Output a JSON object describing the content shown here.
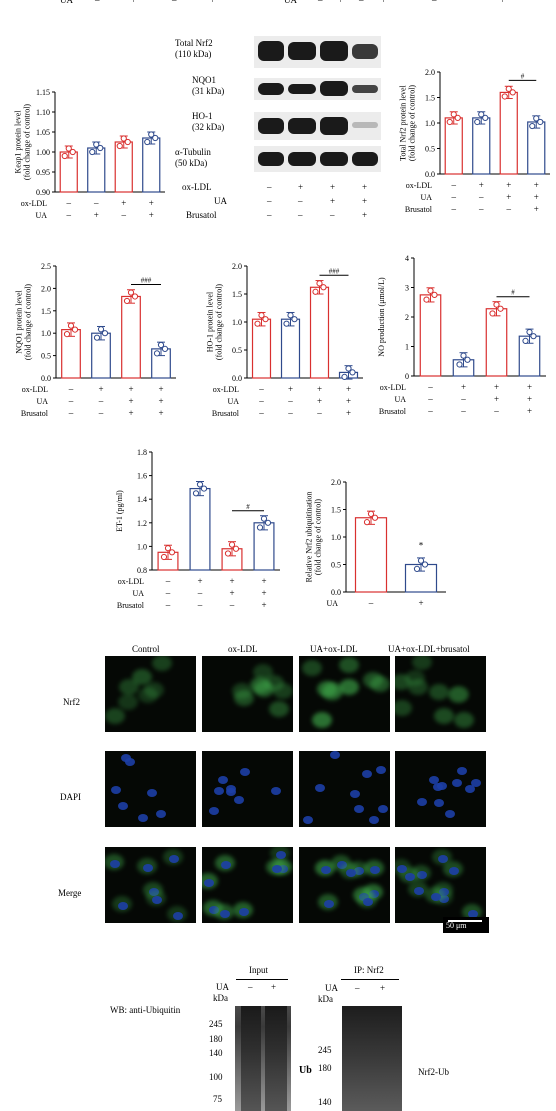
{
  "top_strip": {
    "ua_left": "UA",
    "ua_mid": "UA",
    "vals_left": [
      "–",
      "+",
      "–",
      "+"
    ],
    "vals_mid": [
      "–",
      "+",
      "–",
      "+"
    ],
    "vals_right": [
      "–",
      "+"
    ]
  },
  "colors": {
    "red": "#d9302f",
    "blue": "#2f4a8c",
    "green": "#3fa84a",
    "nucleus": "#1d3fa6"
  },
  "axis_signs": {
    "minus": "–",
    "plus": "+"
  },
  "western_blot_top": {
    "labels": [
      {
        "name": "Total Nrf2",
        "kda": "(110 kDa)"
      },
      {
        "name": "NQO1",
        "kda": "(31 kDa)"
      },
      {
        "name": "HO-1",
        "kda": "(32 kDa)"
      },
      {
        "name": "α-Tubulin",
        "kda": "(50 kDa)"
      }
    ],
    "conditions": [
      {
        "name": "ox-LDL",
        "vals": [
          "–",
          "+",
          "+",
          "+"
        ]
      },
      {
        "name": "UA",
        "vals": [
          "–",
          "–",
          "+",
          "+"
        ]
      },
      {
        "name": "Brusatol",
        "vals": [
          "–",
          "–",
          "–",
          "+"
        ]
      }
    ]
  },
  "chart_data": [
    {
      "type": "bar",
      "ylabel": "Keap1 protein level (fold change of control)",
      "ylabel_lines": [
        "Keap1 protein level",
        "(fold change of control)"
      ],
      "ylim": [
        0.9,
        1.15
      ],
      "yticks": [
        "0.90",
        "0.95",
        "1.00",
        "1.05",
        "1.10",
        "1.15"
      ],
      "values": [
        1.0,
        1.01,
        1.025,
        1.035
      ],
      "colors": [
        "#d9302f",
        "#2f4a8c",
        "#d9302f",
        "#2f4a8c"
      ],
      "conditions": [
        {
          "name": "ox-LDL",
          "vals": [
            "–",
            "–",
            "+",
            "+"
          ]
        },
        {
          "name": "UA",
          "vals": [
            "–",
            "+",
            "–",
            "+"
          ]
        }
      ]
    },
    {
      "type": "bar",
      "ylabel": "Total Nrf2 protein level (fold change of control)",
      "ylabel_lines": [
        "Total Nrf2 protein level",
        "(fold change of control)"
      ],
      "ylim": [
        0.0,
        2.0
      ],
      "yticks": [
        "0.0",
        "0.5",
        "1.0",
        "1.5",
        "2.0"
      ],
      "values": [
        1.1,
        1.1,
        1.6,
        1.02
      ],
      "colors": [
        "#d9302f",
        "#2f4a8c",
        "#d9302f",
        "#2f4a8c"
      ],
      "annotation": "#",
      "conditions": [
        {
          "name": "ox-LDL",
          "vals": [
            "–",
            "+",
            "+",
            "+"
          ]
        },
        {
          "name": "UA",
          "vals": [
            "–",
            "–",
            "+",
            "+"
          ]
        },
        {
          "name": "Brusatol",
          "vals": [
            "–",
            "–",
            "–",
            "+"
          ]
        }
      ]
    },
    {
      "type": "bar",
      "ylabel": "NQO1 protein level (fold change of control)",
      "ylabel_lines": [
        "NQO1 protein level",
        "(fold change of control)"
      ],
      "ylim": [
        0.0,
        2.5
      ],
      "yticks": [
        "0.0",
        "0.5",
        "1.0",
        "1.5",
        "2.0",
        "2.5"
      ],
      "values": [
        1.08,
        1.0,
        1.82,
        0.65
      ],
      "colors": [
        "#d9302f",
        "#2f4a8c",
        "#d9302f",
        "#2f4a8c"
      ],
      "annotation": "###",
      "conditions": [
        {
          "name": "ox-LDL",
          "vals": [
            "–",
            "+",
            "+",
            "+"
          ]
        },
        {
          "name": "UA",
          "vals": [
            "–",
            "–",
            "+",
            "+"
          ]
        },
        {
          "name": "Brusatol",
          "vals": [
            "–",
            "–",
            "+",
            "+"
          ]
        }
      ]
    },
    {
      "type": "bar",
      "ylabel": "HO-1 protein level (fold change of control)",
      "ylabel_lines": [
        "HO-1 protein level",
        "(fold change of control)"
      ],
      "ylim": [
        0.0,
        2.0
      ],
      "yticks": [
        "0.0",
        "0.5",
        "1.0",
        "1.5",
        "2.0"
      ],
      "values": [
        1.05,
        1.05,
        1.62,
        0.1
      ],
      "colors": [
        "#d9302f",
        "#2f4a8c",
        "#d9302f",
        "#2f4a8c"
      ],
      "annotation": "###",
      "conditions": [
        {
          "name": "ox-LDL",
          "vals": [
            "–",
            "+",
            "+",
            "+"
          ]
        },
        {
          "name": "UA",
          "vals": [
            "–",
            "–",
            "+",
            "+"
          ]
        },
        {
          "name": "Brusatol",
          "vals": [
            "–",
            "–",
            "–",
            "+"
          ]
        }
      ]
    },
    {
      "type": "bar",
      "ylabel": "NO production (μmol/L)",
      "ylabel_lines": [
        "NO production (μmol/L)"
      ],
      "ylim": [
        0,
        4
      ],
      "yticks": [
        "0",
        "1",
        "2",
        "3",
        "4"
      ],
      "values": [
        2.75,
        0.55,
        2.28,
        1.35
      ],
      "colors": [
        "#d9302f",
        "#2f4a8c",
        "#d9302f",
        "#2f4a8c"
      ],
      "annotation": "#",
      "conditions": [
        {
          "name": "ox-LDL",
          "vals": [
            "–",
            "+",
            "+",
            "+"
          ]
        },
        {
          "name": "UA",
          "vals": [
            "–",
            "–",
            "+",
            "+"
          ]
        },
        {
          "name": "Brusatol",
          "vals": [
            "–",
            "–",
            "–",
            "+"
          ]
        }
      ]
    },
    {
      "type": "bar",
      "ylabel": "ET-1 (pg/ml)",
      "ylabel_lines": [
        "ET-1 (pg/ml)"
      ],
      "ylim": [
        0.8,
        1.8
      ],
      "yticks": [
        "0.8",
        "1.0",
        "1.2",
        "1.4",
        "1.6",
        "1.8"
      ],
      "values": [
        0.95,
        1.49,
        0.98,
        1.2
      ],
      "colors": [
        "#d9302f",
        "#2f4a8c",
        "#d9302f",
        "#2f4a8c"
      ],
      "annotation": "#",
      "conditions": [
        {
          "name": "ox-LDL",
          "vals": [
            "–",
            "+",
            "+",
            "+"
          ]
        },
        {
          "name": "UA",
          "vals": [
            "–",
            "–",
            "+",
            "+"
          ]
        },
        {
          "name": "Brusatol",
          "vals": [
            "–",
            "–",
            "–",
            "+"
          ]
        }
      ]
    },
    {
      "type": "bar",
      "ylabel": "Relative Nrf2 ubiquitination (fold change of control)",
      "ylabel_lines": [
        "Relative Nrf2 ubiquitination",
        "(fold change of control)"
      ],
      "ylim": [
        0.0,
        2.0
      ],
      "yticks": [
        "0.0",
        "0.5",
        "1.0",
        "1.5",
        "2.0"
      ],
      "values": [
        1.35,
        0.5
      ],
      "colors": [
        "#d9302f",
        "#2f4a8c"
      ],
      "annotation": "*",
      "conditions": [
        {
          "name": "UA",
          "vals": [
            "–",
            "+"
          ]
        }
      ]
    }
  ],
  "microscopy": {
    "columns": [
      "Control",
      "ox-LDL",
      "UA+ox-LDL",
      "UA+ox-LDL+brusatol"
    ],
    "rows": [
      "Nrf2",
      "DAPI",
      "Merge"
    ],
    "scale_bar": "50 μm"
  },
  "ubiquitin_blot": {
    "wb_label": "WB: anti-Ubiquitin",
    "input_title": "Input",
    "ip_title": "IP: Nrf2",
    "ua_label": "UA",
    "kda_label": "kDa",
    "lane_vals": [
      "–",
      "+"
    ],
    "input_markers": [
      "245",
      "180",
      "140",
      "100",
      "75"
    ],
    "ip_markers": [
      "245",
      "180",
      "140"
    ],
    "ub_label": "Ub",
    "nrf2ub_label": "Nrf2-Ub"
  }
}
